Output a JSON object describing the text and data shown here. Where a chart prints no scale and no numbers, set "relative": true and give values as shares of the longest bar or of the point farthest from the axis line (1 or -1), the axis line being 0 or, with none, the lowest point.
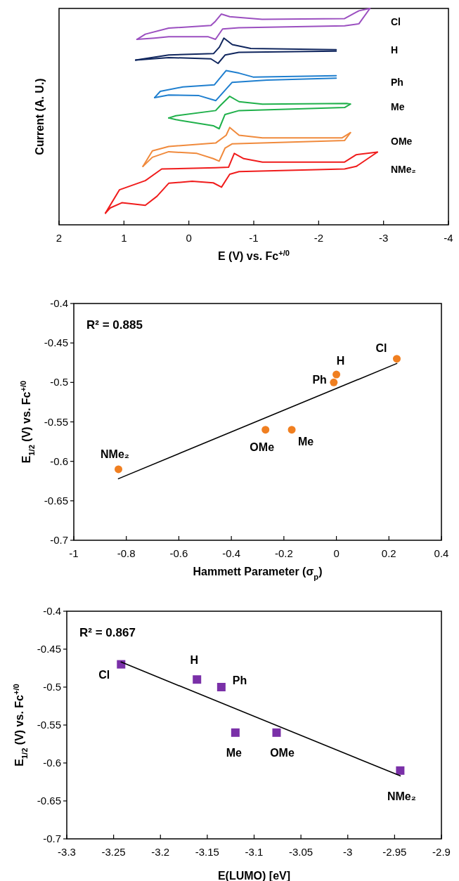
{
  "chart_data": [
    {
      "type": "line",
      "relative": true,
      "xlabel": "E (V) vs. Fc$^{+/0}$",
      "ylabel": "Current (A. U.)",
      "xlim": [
        2,
        -4
      ],
      "xticks": [
        2,
        1,
        0,
        -1,
        -2,
        -3,
        -4
      ],
      "legend": false,
      "grid": false,
      "series": [
        {
          "name": "Cl",
          "color": "#9b4fc0",
          "x": [
            0.8,
            0.67,
            0.31,
            -0.34,
            -0.41,
            -0.5,
            -0.63,
            -1.13,
            -2.4,
            -2.62,
            -2.79
          ],
          "values": [
            0.857,
            0.881,
            0.909,
            0.921,
            0.941,
            0.974,
            0.962,
            0.95,
            0.953,
            0.989,
            1.0
          ]
        },
        {
          "color": "#9b4fc0",
          "x": [
            -2.79,
            -2.62,
            -2.4,
            -0.77,
            -0.52,
            -0.41,
            -0.3,
            0.31,
            0.53,
            0.8
          ],
          "values": [
            1.0,
            0.929,
            0.92,
            0.911,
            0.905,
            0.857,
            0.869,
            0.869,
            0.863,
            0.857
          ]
        },
        {
          "name": "H",
          "color": "#10265e",
          "x": [
            0.82,
            0.31,
            -0.38,
            -0.47,
            -0.54,
            -0.67,
            -0.955,
            -2.27
          ],
          "values": [
            0.761,
            0.785,
            0.791,
            0.821,
            0.863,
            0.833,
            0.815,
            0.809
          ]
        },
        {
          "color": "#10265e",
          "x": [
            -2.27,
            -0.77,
            -0.56,
            -0.45,
            -0.34,
            0.31,
            0.82
          ],
          "values": [
            0.803,
            0.797,
            0.785,
            0.746,
            0.767,
            0.773,
            0.761
          ]
        },
        {
          "name": "Ph",
          "color": "#1f7fcf",
          "x": [
            0.527,
            0.44,
            0.093,
            -0.394,
            -0.575,
            -0.774,
            -0.99,
            -2.27
          ],
          "values": [
            0.588,
            0.617,
            0.637,
            0.647,
            0.713,
            0.701,
            0.683,
            0.689
          ]
        },
        {
          "color": "#1f7fcf",
          "x": [
            -2.27,
            -1.207,
            -0.665,
            -0.416,
            -0.156,
            0.31,
            0.527
          ],
          "values": [
            0.678,
            0.669,
            0.658,
            0.574,
            0.597,
            0.6,
            0.588
          ]
        },
        {
          "name": "Me",
          "color": "#1fb04a",
          "x": [
            0.31,
            0.2,
            -0.413,
            -0.484,
            -0.63,
            -0.774,
            -1.134,
            -2.434,
            -2.489
          ],
          "values": [
            0.494,
            0.504,
            0.528,
            0.551,
            0.594,
            0.569,
            0.558,
            0.561,
            0.558
          ]
        },
        {
          "color": "#1fb04a",
          "x": [
            -2.489,
            -2.4,
            -0.774,
            -0.557,
            -0.467,
            -0.376,
            0.2,
            0.31
          ],
          "values": [
            0.558,
            0.542,
            0.528,
            0.51,
            0.444,
            0.458,
            0.486,
            0.494
          ]
        },
        {
          "name": "OMe",
          "color": "#f08a3c",
          "x": [
            0.707,
            0.562,
            0.31,
            -0.413,
            -0.575,
            -0.63,
            -0.774,
            -1.134,
            -2.363,
            -2.489
          ],
          "values": [
            0.27,
            0.342,
            0.362,
            0.378,
            0.414,
            0.45,
            0.414,
            0.402,
            0.402,
            0.426
          ]
        },
        {
          "color": "#f08a3c",
          "x": [
            -2.489,
            -2.4,
            -0.665,
            -0.557,
            -0.467,
            -0.376,
            -0.124,
            0.31,
            0.562,
            0.707
          ],
          "values": [
            0.426,
            0.39,
            0.374,
            0.354,
            0.294,
            0.306,
            0.33,
            0.338,
            0.312,
            0.27
          ]
        },
        {
          "name": "NMe₂",
          "color": "#f01c1c",
          "x": [
            1.285,
            1.068,
            0.671,
            0.418,
            -0.413,
            -0.611,
            -0.7,
            -0.846,
            -1.134,
            -2.4,
            -2.58,
            -2.905
          ],
          "values": [
            0.054,
            0.162,
            0.204,
            0.258,
            0.264,
            0.266,
            0.33,
            0.306,
            0.29,
            0.29,
            0.324,
            0.336
          ]
        },
        {
          "color": "#f01c1c",
          "x": [
            -2.905,
            -2.58,
            -2.4,
            -0.774,
            -0.63,
            -0.503,
            -0.376,
            -0.051,
            0.31,
            0.491,
            0.671,
            1.032,
            1.212,
            1.285
          ],
          "values": [
            0.336,
            0.27,
            0.258,
            0.246,
            0.234,
            0.174,
            0.194,
            0.201,
            0.192,
            0.132,
            0.09,
            0.102,
            0.078,
            0.054
          ]
        }
      ]
    },
    {
      "type": "scatter",
      "xlabel": "Hammett Parameter (σ$_{p}$)",
      "ylabel": "E$_{1/2}$ (V) vs. Fc$^{+/0}$",
      "xlim": [
        -1,
        0.4
      ],
      "xticks": [
        -1,
        -0.8,
        -0.6,
        -0.4,
        -0.2,
        0,
        0.2,
        0.4
      ],
      "ylim": [
        -0.7,
        -0.4
      ],
      "yticks": [
        -0.7,
        -0.65,
        -0.6,
        -0.55,
        -0.5,
        -0.45,
        -0.4
      ],
      "marker": "circle",
      "legend": false,
      "grid": false,
      "series": [
        {
          "color": "#f07f20",
          "x": [
            0.23,
            0.0,
            -0.01,
            -0.17,
            -0.27,
            -0.83
          ],
          "values": [
            -0.47,
            -0.49,
            -0.5,
            -0.56,
            -0.56,
            -0.61
          ]
        },
        {
          "type": "line",
          "marker": "none",
          "color": "#000000",
          "x": [
            -0.83,
            0.23
          ],
          "values": [
            -0.622,
            -0.476
          ]
        }
      ],
      "annotations": [
        "R² = 0.885",
        {
          "text": "Cl",
          "x": 0.23,
          "y": -0.47
        },
        {
          "text": "H",
          "x": 0.0,
          "y": -0.49
        },
        {
          "text": "Ph",
          "x": -0.01,
          "y": -0.5
        },
        {
          "text": "Me",
          "x": -0.17,
          "y": -0.56
        },
        {
          "text": "OMe",
          "x": -0.27,
          "y": -0.56
        },
        {
          "text": "NMe₂",
          "x": -0.83,
          "y": -0.61
        }
      ]
    },
    {
      "type": "scatter",
      "xlabel": "E(LUMO) [eV]",
      "ylabel": "E$_{1/2}$ (V) vs. Fc$^{+/0}$",
      "xlim": [
        -3.3,
        -2.9
      ],
      "xticks": [
        -3.3,
        -3.25,
        -3.2,
        -3.15,
        -3.1,
        -3.05,
        -3,
        -2.95,
        -2.9
      ],
      "ylim": [
        -0.7,
        -0.4
      ],
      "yticks": [
        -0.7,
        -0.65,
        -0.6,
        -0.55,
        -0.5,
        -0.45,
        -0.4
      ],
      "marker": "square",
      "legend": false,
      "grid": false,
      "series": [
        {
          "color": "#7a30a8",
          "x": [
            -3.242,
            -3.161,
            -3.135,
            -3.12,
            -3.076,
            -2.944
          ],
          "values": [
            -0.47,
            -0.49,
            -0.5,
            -0.56,
            -0.56,
            -0.61
          ]
        },
        {
          "type": "line",
          "marker": "none",
          "color": "#000000",
          "x": [
            -3.242,
            -2.944
          ],
          "values": [
            -0.467,
            -0.617
          ]
        }
      ],
      "annotations": [
        "R² = 0.867",
        {
          "text": "Cl",
          "x": -3.242,
          "y": -0.47
        },
        {
          "text": "H",
          "x": -3.161,
          "y": -0.49
        },
        {
          "text": "Ph",
          "x": -3.135,
          "y": -0.5
        },
        {
          "text": "Me",
          "x": -3.12,
          "y": -0.56
        },
        {
          "text": "OMe",
          "x": -3.076,
          "y": -0.56
        },
        {
          "text": "NMe₂",
          "x": -2.944,
          "y": -0.61
        }
      ]
    }
  ]
}
